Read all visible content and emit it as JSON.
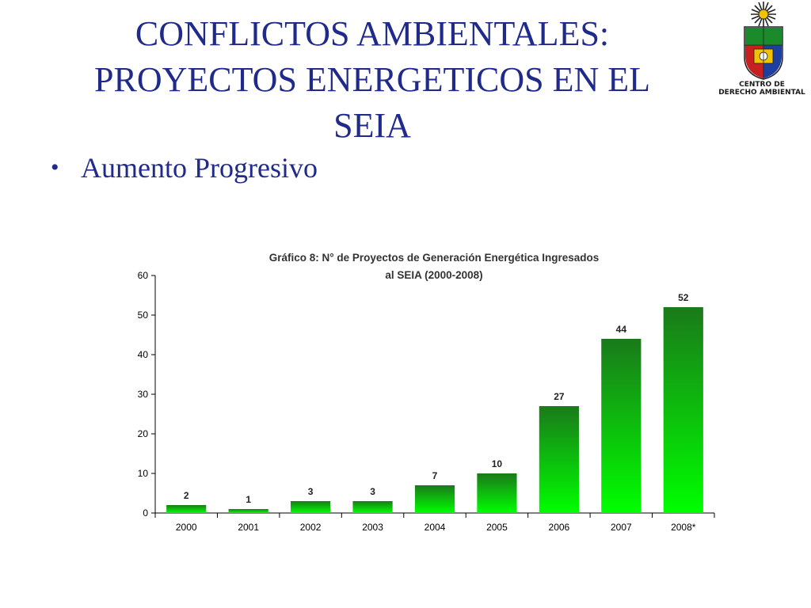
{
  "slide": {
    "title_lines": [
      "CONFLICTOS AMBIENTALES:",
      "PROYECTOS ENERGETICOS EN EL",
      "SEIA"
    ],
    "bullets": [
      {
        "text": "Aumento Progresivo"
      }
    ]
  },
  "logo": {
    "caption_lines": [
      "CENTRO DE",
      "DERECHO AMBIENTAL"
    ],
    "icon": "university-coat-of-arms-icon"
  },
  "colors": {
    "title_text": "#1f2a8a",
    "bar_top": "#1a7a1a",
    "bar_bottom": "#00ff00"
  },
  "chart_data": {
    "type": "bar",
    "title_lines": [
      "Gráfico 8: N° de Proyectos de Generación Energética Ingresados",
      "al SEIA (2000-2008)"
    ],
    "categories": [
      "2000",
      "2001",
      "2002",
      "2003",
      "2004",
      "2005",
      "2006",
      "2007",
      "2008*"
    ],
    "values": [
      2,
      1,
      3,
      3,
      7,
      10,
      27,
      44,
      52
    ],
    "value_labels": [
      "2",
      "1",
      "3",
      "3",
      "7",
      "10",
      "27",
      "44",
      "52"
    ],
    "ylim": [
      0,
      60
    ],
    "yticks": [
      0,
      10,
      20,
      30,
      40,
      50,
      60
    ],
    "grid": false,
    "legend": "none",
    "xlabel": "",
    "ylabel": ""
  }
}
